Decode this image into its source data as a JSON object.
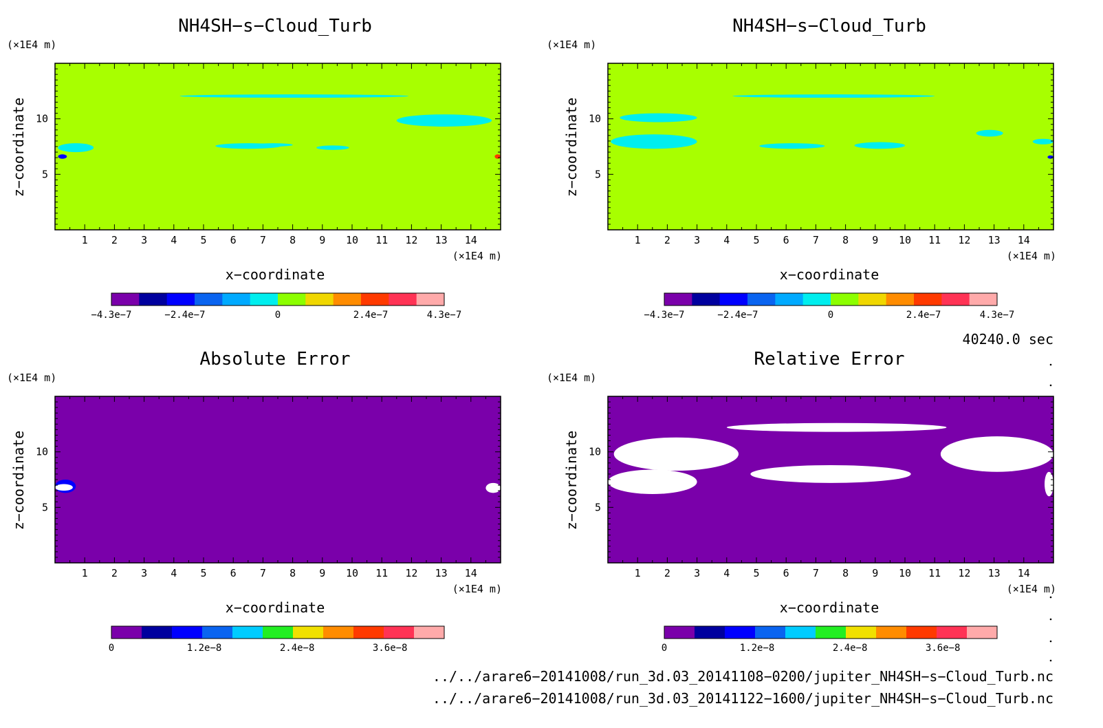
{
  "panels": [
    {
      "title": "NH4SH−s−Cloud_Turb",
      "xlabel": "x−coordinate",
      "ylabel": "z−coordinate",
      "x_unit": "(×1E4 m)",
      "y_unit": "(×1E4 m)",
      "background_color": "#a8ff00",
      "colorbar": {
        "colors": [
          "#7a00aa",
          "#00009e",
          "#0000ff",
          "#0a64f0",
          "#00aaff",
          "#00eeee",
          "#8cff00",
          "#f0d700",
          "#ff8c00",
          "#ff3a00",
          "#ff3355",
          "#ffaaaa"
        ],
        "labels": [
          "−4.3e−7",
          "−2.4e−7",
          "0",
          "2.4e−7",
          "4.3e−7"
        ]
      }
    },
    {
      "title": "NH4SH−s−Cloud_Turb",
      "xlabel": "x−coordinate",
      "ylabel": "z−coordinate",
      "x_unit": "(×1E4 m)",
      "y_unit": "(×1E4 m)",
      "background_color": "#a8ff00",
      "colorbar": {
        "colors": [
          "#7a00aa",
          "#00009e",
          "#0000ff",
          "#0a64f0",
          "#00aaff",
          "#00eeee",
          "#8cff00",
          "#f0d700",
          "#ff8c00",
          "#ff3a00",
          "#ff3355",
          "#ffaaaa"
        ],
        "labels": [
          "−4.3e−7",
          "−2.4e−7",
          "0",
          "2.4e−7",
          "4.3e−7"
        ]
      }
    },
    {
      "title": "Absolute Error",
      "xlabel": "x−coordinate",
      "ylabel": "z−coordinate",
      "x_unit": "(×1E4 m)",
      "y_unit": "(×1E4 m)",
      "background_color": "#7a00aa",
      "colorbar": {
        "colors": [
          "#7a00aa",
          "#00009e",
          "#0000ff",
          "#0a64f0",
          "#00ccff",
          "#22ee22",
          "#f0e000",
          "#ff8c00",
          "#ff3a00",
          "#ff3355",
          "#ffaaaa"
        ],
        "labels": [
          "0",
          "1.2e−8",
          "2.4e−8",
          "3.6e−8"
        ]
      }
    },
    {
      "title": "Relative Error",
      "xlabel": "x−coordinate",
      "ylabel": "z−coordinate",
      "x_unit": "(×1E4 m)",
      "y_unit": "(×1E4 m)",
      "background_color": "#7a00aa",
      "colorbar": {
        "colors": [
          "#7a00aa",
          "#00009e",
          "#0000ff",
          "#0a64f0",
          "#00ccff",
          "#22ee22",
          "#f0e000",
          "#ff8c00",
          "#ff3a00",
          "#ff3355",
          "#ffaaaa"
        ],
        "labels": [
          "0",
          "1.2e−8",
          "2.4e−8",
          "3.6e−8"
        ]
      }
    }
  ],
  "time_label": "40240.0 sec",
  "file_paths": [
    "../../arare6−20141008/run_3d.03_20141108−0200/jupiter_NH4SH−s−Cloud_Turb.nc",
    "../../arare6−20141008/run_3d.03_20141122−1600/jupiter_NH4SH−s−Cloud_Turb.nc"
  ],
  "chart_data": [
    {
      "type": "heatmap",
      "title": "NH4SH−s−Cloud_Turb",
      "xlabel": "x−coordinate",
      "ylabel": "z−coordinate",
      "xlim": [
        0,
        15
      ],
      "ylim": [
        0,
        15
      ],
      "x_ticks": [
        1,
        2,
        3,
        4,
        5,
        6,
        7,
        8,
        9,
        10,
        11,
        12,
        13,
        14
      ],
      "y_ticks": [
        5,
        10
      ],
      "colorbar_labels": [
        "−4.3e−7",
        "−2.4e−7",
        "0",
        "2.4e−7",
        "4.3e−7"
      ],
      "colorbar_range": [
        -4.3e-07,
        4.3e-07
      ],
      "features": [
        {
          "shape": "band",
          "x": [
            4.2,
            11.9
          ],
          "z": [
            11.9,
            12.2
          ],
          "color": "#00eeee"
        },
        {
          "shape": "band",
          "x": [
            11.5,
            14.7
          ],
          "z": [
            9.3,
            10.4
          ],
          "color": "#00eeee"
        },
        {
          "shape": "band",
          "x": [
            5.4,
            7.6
          ],
          "z": [
            7.3,
            7.8
          ],
          "color": "#00eeee"
        },
        {
          "shape": "band",
          "x": [
            6.7,
            8.0
          ],
          "z": [
            7.5,
            7.8
          ],
          "color": "#00eeee"
        },
        {
          "shape": "band",
          "x": [
            8.8,
            9.9
          ],
          "z": [
            7.2,
            7.6
          ],
          "color": "#00eeee"
        },
        {
          "shape": "band",
          "x": [
            0.1,
            1.3
          ],
          "z": [
            7.0,
            7.8
          ],
          "color": "#00eeee"
        },
        {
          "shape": "spot",
          "x": [
            0.1,
            0.4
          ],
          "z": [
            6.4,
            6.8
          ],
          "color": "#0000ff"
        },
        {
          "shape": "spot",
          "x": [
            14.8,
            15.0
          ],
          "z": [
            6.4,
            6.8
          ],
          "color": "#ff3a00"
        }
      ]
    },
    {
      "type": "heatmap",
      "title": "NH4SH−s−Cloud_Turb",
      "xlabel": "x−coordinate",
      "ylabel": "z−coordinate",
      "xlim": [
        0,
        15
      ],
      "ylim": [
        0,
        15
      ],
      "x_ticks": [
        1,
        2,
        3,
        4,
        5,
        6,
        7,
        8,
        9,
        10,
        11,
        12,
        13,
        14
      ],
      "y_ticks": [
        5,
        10
      ],
      "colorbar_labels": [
        "−4.3e−7",
        "−2.4e−7",
        "0",
        "2.4e−7",
        "4.3e−7"
      ],
      "colorbar_range": [
        -4.3e-07,
        4.3e-07
      ],
      "features": [
        {
          "shape": "band",
          "x": [
            4.2,
            11.0
          ],
          "z": [
            11.9,
            12.2
          ],
          "color": "#00eeee"
        },
        {
          "shape": "band",
          "x": [
            0.4,
            3.0
          ],
          "z": [
            9.7,
            10.5
          ],
          "color": "#00eeee"
        },
        {
          "shape": "band",
          "x": [
            0.1,
            3.0
          ],
          "z": [
            7.3,
            8.6
          ],
          "color": "#00eeee"
        },
        {
          "shape": "band",
          "x": [
            5.1,
            7.3
          ],
          "z": [
            7.3,
            7.8
          ],
          "color": "#00eeee"
        },
        {
          "shape": "band",
          "x": [
            8.3,
            10.0
          ],
          "z": [
            7.3,
            7.9
          ],
          "color": "#00eeee"
        },
        {
          "shape": "band",
          "x": [
            12.4,
            13.3
          ],
          "z": [
            8.4,
            9.0
          ],
          "color": "#00eeee"
        },
        {
          "shape": "band",
          "x": [
            14.3,
            15.0
          ],
          "z": [
            7.7,
            8.2
          ],
          "color": "#00eeee"
        },
        {
          "shape": "spot",
          "x": [
            14.8,
            15.0
          ],
          "z": [
            6.4,
            6.7
          ],
          "color": "#0000ff"
        }
      ]
    },
    {
      "type": "heatmap",
      "title": "Absolute Error",
      "xlabel": "x−coordinate",
      "ylabel": "z−coordinate",
      "xlim": [
        0,
        15
      ],
      "ylim": [
        0,
        15
      ],
      "x_ticks": [
        1,
        2,
        3,
        4,
        5,
        6,
        7,
        8,
        9,
        10,
        11,
        12,
        13,
        14
      ],
      "y_ticks": [
        5,
        10
      ],
      "colorbar_labels": [
        "0",
        "1.2e−8",
        "2.4e−8",
        "3.6e−8"
      ],
      "colorbar_range": [
        0,
        4.3e-08
      ],
      "features": [
        {
          "shape": "spot",
          "x": [
            0.0,
            0.7
          ],
          "z": [
            6.3,
            7.5
          ],
          "color": "#0000ff"
        },
        {
          "shape": "spot",
          "x": [
            0.0,
            0.6
          ],
          "z": [
            6.5,
            7.1
          ],
          "color": "#ffffff"
        },
        {
          "shape": "spot",
          "x": [
            14.5,
            15.0
          ],
          "z": [
            6.3,
            7.2
          ],
          "color": "#ffffff"
        }
      ]
    },
    {
      "type": "heatmap",
      "title": "Relative Error",
      "xlabel": "x−coordinate",
      "ylabel": "z−coordinate",
      "xlim": [
        0,
        15
      ],
      "ylim": [
        0,
        15
      ],
      "x_ticks": [
        1,
        2,
        3,
        4,
        5,
        6,
        7,
        8,
        9,
        10,
        11,
        12,
        13,
        14
      ],
      "y_ticks": [
        5,
        10
      ],
      "colorbar_labels": [
        "0",
        "1.2e−8",
        "2.4e−8",
        "3.6e−8"
      ],
      "colorbar_range": [
        0,
        4.3e-08
      ],
      "features": [
        {
          "shape": "blob",
          "x": [
            4.0,
            11.4
          ],
          "z": [
            11.8,
            12.6
          ],
          "color": "#ffffff"
        },
        {
          "shape": "blob",
          "x": [
            0.2,
            4.4
          ],
          "z": [
            8.3,
            11.3
          ],
          "color": "#ffffff"
        },
        {
          "shape": "blob",
          "x": [
            0.0,
            3.0
          ],
          "z": [
            6.2,
            8.4
          ],
          "color": "#ffffff"
        },
        {
          "shape": "blob",
          "x": [
            4.8,
            10.2
          ],
          "z": [
            7.2,
            8.8
          ],
          "color": "#ffffff"
        },
        {
          "shape": "blob",
          "x": [
            11.2,
            15.0
          ],
          "z": [
            8.2,
            11.4
          ],
          "color": "#ffffff"
        },
        {
          "shape": "blob",
          "x": [
            14.7,
            15.0
          ],
          "z": [
            6.0,
            8.2
          ],
          "color": "#ffffff"
        }
      ]
    }
  ]
}
